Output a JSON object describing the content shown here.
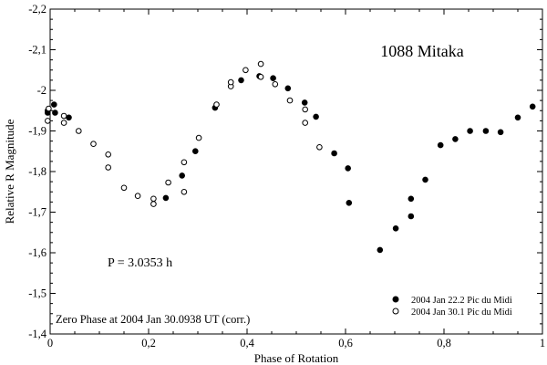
{
  "chart_data": {
    "type": "scatter",
    "title": "1088 Mitaka",
    "xlabel": "Phase of Rotation",
    "ylabel": "Relative R Magnitude",
    "xlim": [
      0,
      1
    ],
    "ylim": [
      -1.4,
      -2.2
    ],
    "y_inverted": true,
    "x_ticks": [
      0,
      0.2,
      0.4,
      0.6,
      0.8,
      1
    ],
    "x_tick_labels": [
      "0",
      "0,2",
      "0,4",
      "0,6",
      "0,8",
      "1"
    ],
    "y_ticks": [
      -2.2,
      -2.1,
      -2.0,
      -1.9,
      -1.8,
      -1.7,
      -1.6,
      -1.5,
      -1.4
    ],
    "y_tick_labels": [
      "-2,2",
      "-2,1",
      "-2",
      "-1,9",
      "-1,8",
      "-1,7",
      "-1,6",
      "-1,5",
      "-1,4"
    ],
    "annotations": {
      "period": "P = 3.0353 h",
      "zero_phase": "Zero Phase at 2004 Jan 30.0938 UT (corr.)"
    },
    "legend_position": "bottom-right",
    "series": [
      {
        "name": "2004 Jan 22.2 Pic du Midi",
        "marker": "filled",
        "points": [
          [
            -0.005,
            -1.945
          ],
          [
            -0.005,
            -1.95
          ],
          [
            0.008,
            -1.965
          ],
          [
            0.01,
            -1.945
          ],
          [
            0.038,
            -1.933
          ],
          [
            0.235,
            -1.735
          ],
          [
            0.268,
            -1.79
          ],
          [
            0.295,
            -1.85
          ],
          [
            0.335,
            -1.957
          ],
          [
            0.388,
            -2.025
          ],
          [
            0.425,
            -2.035
          ],
          [
            0.453,
            -2.03
          ],
          [
            0.483,
            -2.005
          ],
          [
            0.517,
            -1.97
          ],
          [
            0.54,
            -1.935
          ],
          [
            0.577,
            -1.845
          ],
          [
            0.605,
            -1.808
          ],
          [
            0.607,
            -1.723
          ],
          [
            0.67,
            -1.607
          ],
          [
            0.702,
            -1.66
          ],
          [
            0.733,
            -1.733
          ],
          [
            0.733,
            -1.69
          ],
          [
            0.762,
            -1.78
          ],
          [
            0.793,
            -1.865
          ],
          [
            0.823,
            -1.88
          ],
          [
            0.853,
            -1.9
          ],
          [
            0.885,
            -1.9
          ],
          [
            0.915,
            -1.897
          ],
          [
            0.95,
            -1.933
          ],
          [
            0.98,
            -1.96
          ]
        ]
      },
      {
        "name": "2004 Jan 30.1 Pic du Midi",
        "marker": "open",
        "points": [
          [
            -0.005,
            -1.925
          ],
          [
            -0.003,
            -1.955
          ],
          [
            0.028,
            -1.92
          ],
          [
            0.028,
            -1.937
          ],
          [
            0.058,
            -1.9
          ],
          [
            0.088,
            -1.868
          ],
          [
            0.118,
            -1.842
          ],
          [
            0.118,
            -1.81
          ],
          [
            0.15,
            -1.76
          ],
          [
            0.178,
            -1.74
          ],
          [
            0.21,
            -1.72
          ],
          [
            0.21,
            -1.733
          ],
          [
            0.24,
            -1.773
          ],
          [
            0.272,
            -1.823
          ],
          [
            0.272,
            -1.75
          ],
          [
            0.302,
            -1.883
          ],
          [
            0.338,
            -1.965
          ],
          [
            0.367,
            -2.01
          ],
          [
            0.367,
            -2.02
          ],
          [
            0.397,
            -2.05
          ],
          [
            0.428,
            -2.065
          ],
          [
            0.428,
            -2.033
          ],
          [
            0.457,
            -2.015
          ],
          [
            0.487,
            -1.975
          ],
          [
            0.518,
            -1.953
          ],
          [
            0.518,
            -1.92
          ],
          [
            0.547,
            -1.86
          ]
        ]
      }
    ]
  }
}
